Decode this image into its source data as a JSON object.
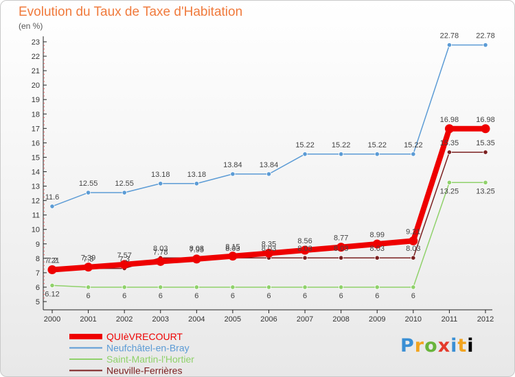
{
  "title": "Evolution du Taux de Taxe d'Habitation",
  "unit_label": "(en %)",
  "logo_text": "Proxiti",
  "chart_data": {
    "type": "line",
    "title": "Evolution du Taux de Taxe d'Habitation",
    "ylabel": "(en %)",
    "xlabel": "",
    "x": [
      "2000",
      "2001",
      "2002",
      "2003",
      "2004",
      "2005",
      "2006",
      "2007",
      "2008",
      "2009",
      "2010",
      "2011",
      "2012"
    ],
    "ylim": [
      5,
      23
    ],
    "yticks": [
      5,
      6,
      7,
      8,
      9,
      10,
      11,
      12,
      13,
      14,
      15,
      16,
      17,
      18,
      19,
      20,
      21,
      22,
      23
    ],
    "grid": false,
    "legend_position": "bottom-left",
    "series": [
      {
        "name": "QUIèVRECOURT",
        "color": "#ee0000",
        "values": [
          7.21,
          7.39,
          7.57,
          7.78,
          7.95,
          8.15,
          8.35,
          8.56,
          8.77,
          8.99,
          9.21,
          16.98,
          16.98
        ],
        "labels": [
          "7.21",
          "7.39",
          "7.57",
          "7.78",
          "7.95",
          "8.15",
          "8.35",
          "8.56",
          "8.77",
          "8.99",
          "9.21",
          "16.98",
          "16.98"
        ]
      },
      {
        "name": "Neufchâtel-en-Bray",
        "color": "#5b9bd5",
        "values": [
          11.6,
          12.55,
          12.55,
          13.18,
          13.18,
          13.84,
          13.84,
          15.22,
          15.22,
          15.22,
          15.22,
          22.78,
          22.78
        ],
        "labels": [
          "11.6",
          "12.55",
          "12.55",
          "13.18",
          "13.18",
          "13.84",
          "13.84",
          "15.22",
          "15.22",
          "15.22",
          "15.22",
          "22.78",
          "22.78"
        ]
      },
      {
        "name": "Saint-Martin-l'Hortier",
        "color": "#8fd16a",
        "values": [
          6.12,
          6,
          6,
          6,
          6,
          6,
          6,
          6,
          6,
          6,
          6,
          13.25,
          13.25
        ],
        "labels": [
          "6.12",
          "6",
          "6",
          "6",
          "6",
          "6",
          "6",
          "6",
          "6",
          "6",
          "6",
          "13.25",
          "13.25"
        ]
      },
      {
        "name": "Neuville-Ferrières",
        "color": "#7b2020",
        "values": [
          7.2,
          7.3,
          7.3,
          8.03,
          8.03,
          8.03,
          8.03,
          8.03,
          8.03,
          8.03,
          8.03,
          15.35,
          15.35
        ],
        "labels": [
          "7.2",
          "7.3",
          "7.3",
          "8.03",
          "8.03",
          "8.03",
          "8.03",
          "8.03",
          "8.03",
          "8.03",
          "8.03",
          "15.35",
          "15.35"
        ]
      }
    ]
  }
}
